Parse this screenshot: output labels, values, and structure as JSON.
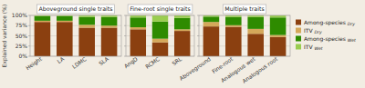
{
  "chart_data": [
    {
      "type": "bar",
      "stacked": true,
      "title": "Aboveground single traits",
      "ylabel": "Explained variance (%)",
      "categories": [
        "Height",
        "LA",
        "LDMC",
        "SLA"
      ],
      "series": [
        {
          "color": "#8B4010",
          "values": [
            84,
            84,
            70,
            70
          ]
        },
        {
          "color": "#D4A85A",
          "values": [
            3,
            3,
            7,
            5
          ]
        },
        {
          "color": "#2E8B00",
          "values": [
            11,
            11,
            19,
            21
          ]
        },
        {
          "color": "#9ACD50",
          "values": [
            2,
            2,
            4,
            4
          ]
        }
      ],
      "ylim": [
        0,
        100
      ],
      "yticks": [
        {
          "value": 0,
          "label": "0%"
        },
        {
          "value": 25,
          "label": "25%"
        },
        {
          "value": 50,
          "label": "50%"
        },
        {
          "value": 75,
          "label": "75%"
        },
        {
          "value": 100,
          "label": "100%"
        }
      ],
      "grid": true
    },
    {
      "type": "bar",
      "stacked": true,
      "title": "Fine-root single traits",
      "categories": [
        "AngD",
        "RCMC",
        "SRL"
      ],
      "series": [
        {
          "color": "#8B4010",
          "values": [
            66,
            34,
            62
          ]
        },
        {
          "color": "#D4A85A",
          "values": [
            5,
            9,
            4
          ]
        },
        {
          "color": "#2E8B00",
          "values": [
            24,
            42,
            28
          ]
        },
        {
          "color": "#9ACD50",
          "values": [
            5,
            15,
            6
          ]
        }
      ],
      "ylim": [
        0,
        100
      ],
      "yticks": [
        0,
        25,
        50,
        75,
        100
      ],
      "tick_labels": "x",
      "grid": true
    },
    {
      "type": "bar",
      "stacked": true,
      "title": "Multiple traits",
      "categories": [
        "Aboveground",
        "Fine-root",
        "Analogous wet",
        "Analogous root"
      ],
      "series": [
        {
          "name": "Among-species Dry",
          "color": "#8B4010",
          "values": [
            73,
            72,
            55,
            47
          ]
        },
        {
          "name": "ITV Dry",
          "color": "#D4A85A",
          "values": [
            11,
            4,
            12,
            5
          ]
        },
        {
          "name": "Among-species Wet",
          "color": "#2E8B00",
          "values": [
            13,
            20,
            29,
            43
          ]
        },
        {
          "name": "ITV Wet",
          "color": "#9ACD50",
          "values": [
            3,
            4,
            4,
            5
          ]
        }
      ],
      "ylim": [
        0,
        100
      ],
      "yticks": [
        0,
        25,
        50,
        75,
        100
      ],
      "tick_labels": "x",
      "grid": true,
      "legend": "right"
    }
  ]
}
